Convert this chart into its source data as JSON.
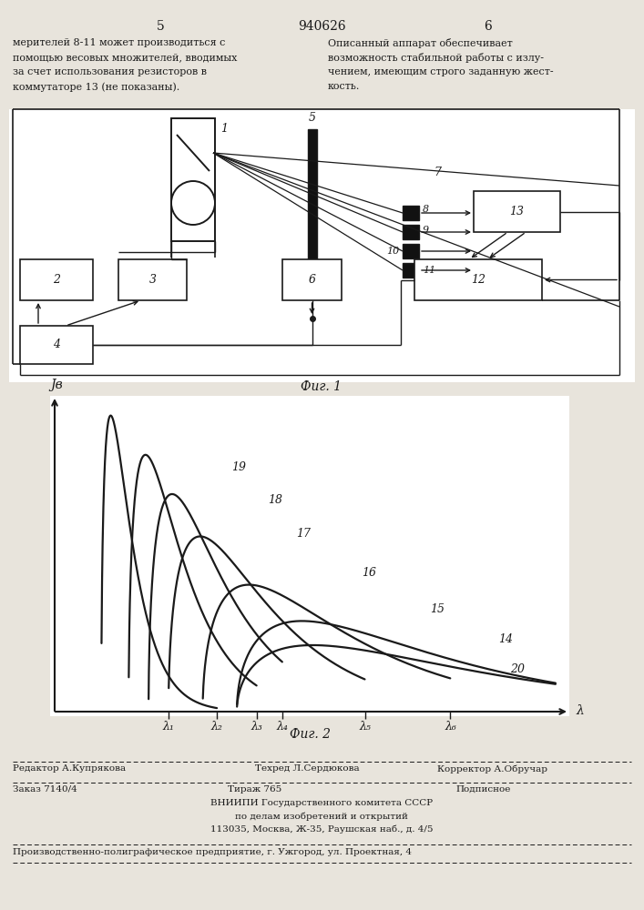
{
  "title": "940626",
  "page_left": "5",
  "page_right": "6",
  "text_left": "мерителей 8-11 может производиться с\nпомощью весовых множителей, вводимых\nза счет использования резисторов в\nкоммутаторе 13 (не показаны).",
  "text_right": "Описанный аппарат обеспечивает\nвозможность стабильной работы с излу-\nчением, имеющим строго заданную жест-\nкость.",
  "fig1_caption": "Фиг. 1",
  "fig2_caption": "Фиг. 2",
  "fig2_ylabel": "Jв",
  "fig2_xlabel": "λ",
  "lambda_labels": [
    "λ₁",
    "λ₂",
    "λ₃",
    "λ₄",
    "λ₅",
    "λ₆"
  ],
  "lambda_values": [
    0.2,
    0.285,
    0.355,
    0.4,
    0.545,
    0.695
  ],
  "footer_line1_left": "Редактор А.Купрякова",
  "footer_line1_mid": "Техред Л.Сердюкова",
  "footer_line1_right": "Корректор А.Обручар",
  "footer_line2_left": "Заказ 7140/4",
  "footer_line2_mid": "Тираж 765",
  "footer_line2_right": "Подписное",
  "footer_line3": "ВНИИПИ Государственного комитета СССР",
  "footer_line4": "по делам изобретений и открытий",
  "footer_line5": "113035, Москва, Ж-35, Раушская наб., д. 4/5",
  "footer_line6": "Производственно-полиграфическое предприятие, г. Ужгород, ул. Проектная, 4",
  "bg_color": "#e8e4dc",
  "line_color": "#1a1a1a",
  "text_color": "#1a1a1a"
}
